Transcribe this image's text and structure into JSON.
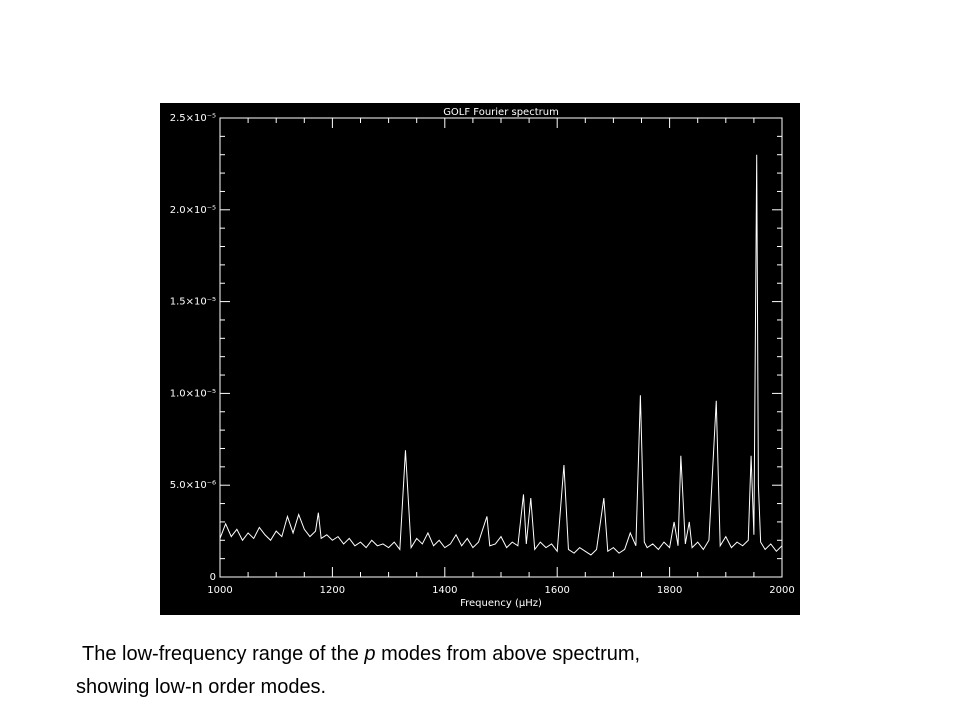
{
  "chart_data": {
    "type": "line",
    "title": "GOLF Fourier spectrum",
    "x_label": "Frequency (μHz)",
    "x": [
      1000,
      1010,
      1020,
      1030,
      1040,
      1050,
      1060,
      1070,
      1080,
      1090,
      1100,
      1110,
      1120,
      1130,
      1140,
      1150,
      1160,
      1170,
      1175,
      1180,
      1190,
      1200,
      1210,
      1220,
      1230,
      1240,
      1250,
      1260,
      1270,
      1280,
      1290,
      1300,
      1310,
      1320,
      1330,
      1340,
      1350,
      1360,
      1370,
      1380,
      1390,
      1400,
      1410,
      1420,
      1430,
      1440,
      1450,
      1460,
      1475,
      1480,
      1490,
      1500,
      1510,
      1520,
      1530,
      1540,
      1545,
      1553,
      1560,
      1570,
      1580,
      1590,
      1600,
      1612,
      1620,
      1630,
      1640,
      1650,
      1660,
      1670,
      1683,
      1690,
      1700,
      1710,
      1720,
      1730,
      1740,
      1748,
      1755,
      1760,
      1770,
      1780,
      1790,
      1800,
      1808,
      1815,
      1820,
      1828,
      1835,
      1840,
      1850,
      1860,
      1870,
      1883,
      1890,
      1900,
      1910,
      1920,
      1930,
      1940,
      1945,
      1950,
      1955,
      1958,
      1962,
      1970,
      1980,
      1990,
      2000
    ],
    "values": [
      2.1e-06,
      2.9e-06,
      2.2e-06,
      2.6e-06,
      2e-06,
      2.4e-06,
      2.1e-06,
      2.7e-06,
      2.3e-06,
      2e-06,
      2.5e-06,
      2.2e-06,
      3.3e-06,
      2.4e-06,
      3.4e-06,
      2.6e-06,
      2.2e-06,
      2.5e-06,
      3.5e-06,
      2.1e-06,
      2.3e-06,
      2e-06,
      2.2e-06,
      1.8e-06,
      2.1e-06,
      1.7e-06,
      1.9e-06,
      1.6e-06,
      2e-06,
      1.7e-06,
      1.8e-06,
      1.6e-06,
      1.9e-06,
      1.5e-06,
      6.9e-06,
      1.6e-06,
      2.1e-06,
      1.8e-06,
      2.4e-06,
      1.7e-06,
      2e-06,
      1.6e-06,
      1.8e-06,
      2.3e-06,
      1.7e-06,
      2.1e-06,
      1.6e-06,
      1.9e-06,
      3.3e-06,
      1.7e-06,
      1.8e-06,
      2.2e-06,
      1.6e-06,
      1.9e-06,
      1.7e-06,
      4.5e-06,
      1.8e-06,
      4.3e-06,
      1.5e-06,
      1.9e-06,
      1.6e-06,
      1.8e-06,
      1.4e-06,
      6.1e-06,
      1.5e-06,
      1.3e-06,
      1.6e-06,
      1.4e-06,
      1.2e-06,
      1.5e-06,
      4.3e-06,
      1.4e-06,
      1.6e-06,
      1.3e-06,
      1.5e-06,
      2.4e-06,
      1.7e-06,
      9.9e-06,
      1.9e-06,
      1.6e-06,
      1.8e-06,
      1.5e-06,
      1.9e-06,
      1.6e-06,
      3e-06,
      1.7e-06,
      6.6e-06,
      1.8e-06,
      3e-06,
      1.6e-06,
      1.9e-06,
      1.5e-06,
      2e-06,
      9.6e-06,
      1.7e-06,
      2.2e-06,
      1.6e-06,
      1.9e-06,
      1.7e-06,
      2e-06,
      6.6e-06,
      2.3e-06,
      2.3e-05,
      5e-06,
      1.9e-06,
      1.5e-06,
      1.8e-06,
      1.4e-06,
      1.7e-06
    ],
    "color": "#ffffff",
    "xlim": [
      1000,
      2000
    ],
    "xticks": [
      1000,
      1200,
      1400,
      1600,
      1800,
      2000
    ],
    "ylim": [
      0,
      2.5e-05
    ],
    "yticks": [
      0,
      {
        "value": 5e-06,
        "label": "5.0×10⁻⁶"
      },
      {
        "value": 1e-05,
        "label": "1.0×10⁻⁵"
      },
      {
        "value": 1.5e-05,
        "label": "1.5×10⁻⁵"
      },
      {
        "value": 2e-05,
        "label": "2.0×10⁻⁵"
      },
      {
        "value": 2.5e-05,
        "label": "2.5×10⁻⁵"
      }
    ]
  },
  "caption": {
    "line1": [
      "The low-frequency range of the ",
      "p",
      " modes from above spectrum,"
    ],
    "line2": "showing low-n order modes."
  }
}
